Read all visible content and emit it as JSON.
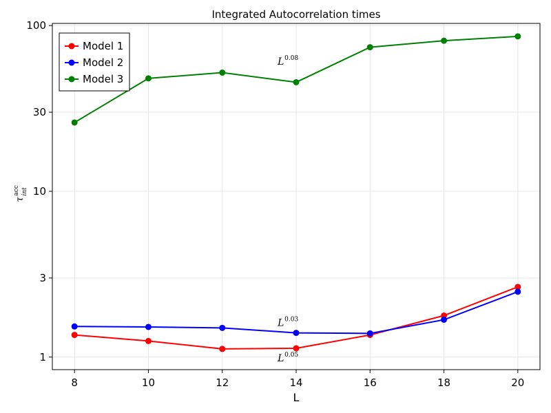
{
  "chart_data": {
    "type": "line",
    "title": "Integrated Autocorrelation times",
    "xlabel": "L",
    "ylabel": {
      "base": "τ",
      "sub": "int",
      "sup": "acc"
    },
    "yscale": "log",
    "xlim": [
      7.4,
      20.6
    ],
    "ylim": [
      0.84,
      103
    ],
    "x_ticks": [
      8,
      10,
      12,
      14,
      16,
      18,
      20
    ],
    "y_ticks": [
      1,
      3,
      10,
      30,
      100
    ],
    "grid": true,
    "legend_position": "top-left",
    "x": [
      8,
      10,
      12,
      14,
      16,
      18,
      20
    ],
    "series": [
      {
        "name": "Model 1",
        "color": "#ff0000",
        "values": [
          1.36,
          1.25,
          1.12,
          1.13,
          1.36,
          1.78,
          2.65
        ]
      },
      {
        "name": "Model 2",
        "color": "#0000ff",
        "values": [
          1.53,
          1.52,
          1.5,
          1.4,
          1.39,
          1.68,
          2.48
        ]
      },
      {
        "name": "Model 3",
        "color": "#008000",
        "values": [
          26,
          48,
          52,
          45.5,
          74,
          81,
          86
        ]
      }
    ],
    "annotations": [
      {
        "base": "L",
        "exp": "0.08",
        "x": 13.5,
        "y": 61
      },
      {
        "base": "L",
        "exp": "0.03",
        "x": 13.5,
        "y": 1.62
      },
      {
        "base": "L",
        "exp": "0.05",
        "x": 13.5,
        "y": 0.99
      }
    ]
  }
}
